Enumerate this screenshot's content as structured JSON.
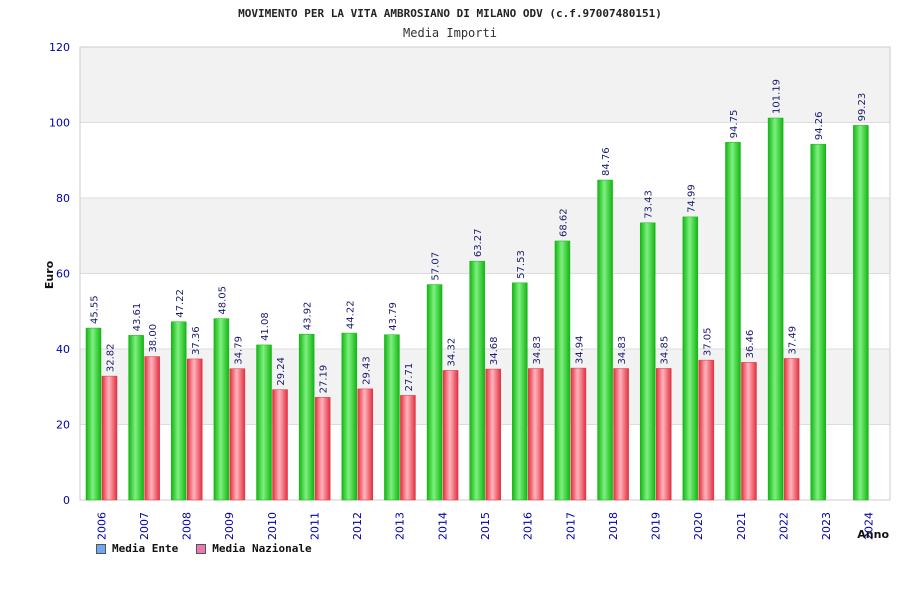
{
  "colors": {
    "ente_bar": "#13b513",
    "ente_bar_light": "#7ff07f",
    "naz_bar": "#e2303f",
    "naz_bar_light": "#ffb5bf",
    "legend_ente": "#6ea8f2",
    "legend_naz": "#e87ab3",
    "axis_text": "#0000aa",
    "label_text": "#1a1a6e",
    "band": "#f2f2f2"
  },
  "chart_data": {
    "type": "bar",
    "title": "MOVIMENTO PER LA VITA AMBROSIANO DI MILANO ODV (c.f.97007480151)",
    "subtitle": "Media Importi",
    "ylabel": "Euro",
    "xlabel": "Anno",
    "ylim": [
      0,
      120
    ],
    "yticks": [
      0,
      20,
      40,
      60,
      80,
      100,
      120
    ],
    "categories": [
      "2006",
      "2007",
      "2008",
      "2009",
      "2010",
      "2011",
      "2012",
      "2013",
      "2014",
      "2015",
      "2016",
      "2017",
      "2018",
      "2019",
      "2020",
      "2021",
      "2022",
      "2023",
      "2024"
    ],
    "series": [
      {
        "name": "Media Ente",
        "values": [
          45.55,
          43.61,
          47.22,
          48.05,
          41.08,
          43.92,
          44.22,
          43.79,
          57.07,
          63.27,
          57.53,
          68.62,
          84.76,
          73.43,
          74.99,
          94.75,
          101.19,
          94.26,
          99.23
        ],
        "labels": [
          "45.55",
          "43.61",
          "47.22",
          "48.05",
          "41.08",
          "43.92",
          "44.22",
          "43.79",
          "57.07",
          "63.27",
          "57.53",
          "68.62",
          "84.76",
          "73.43",
          "74.99",
          "94.75",
          "101.19",
          "94.26",
          "99.23"
        ]
      },
      {
        "name": "Media Nazionale",
        "values": [
          32.82,
          38.0,
          37.36,
          34.79,
          29.24,
          27.19,
          29.43,
          27.71,
          34.32,
          34.68,
          34.83,
          34.94,
          34.83,
          34.85,
          37.05,
          36.46,
          37.49,
          null,
          null
        ],
        "labels": [
          "32.82",
          "38.00",
          "37.36",
          "34.79",
          "29.24",
          "27.19",
          "29.43",
          "27.71",
          "34.32",
          "34.68",
          "34.83",
          "34.94",
          "34.83",
          "34.85",
          "37.05",
          "36.46",
          "37.49",
          "",
          ""
        ]
      }
    ],
    "legend_position": "bottom-left",
    "grid": true
  }
}
